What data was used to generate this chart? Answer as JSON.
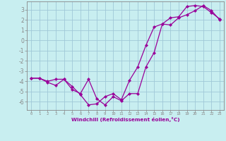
{
  "xlabel": "Windchill (Refroidissement éolien,°C)",
  "bg_color": "#c8eef0",
  "grid_color": "#a0c8d8",
  "line_color": "#990099",
  "spine_color": "#888888",
  "xlim": [
    -0.5,
    23.5
  ],
  "ylim": [
    -6.8,
    3.8
  ],
  "xticks": [
    0,
    1,
    2,
    3,
    4,
    5,
    6,
    7,
    8,
    9,
    10,
    11,
    12,
    13,
    14,
    15,
    16,
    17,
    18,
    19,
    20,
    21,
    22,
    23
  ],
  "yticks": [
    -6,
    -5,
    -4,
    -3,
    -2,
    -1,
    0,
    1,
    2,
    3
  ],
  "line1_x": [
    0,
    1,
    2,
    3,
    4,
    5,
    6,
    7,
    8,
    9,
    10,
    11,
    12,
    13,
    14,
    15,
    16,
    17,
    18,
    19,
    20,
    21,
    22,
    23
  ],
  "line1_y": [
    -3.7,
    -3.7,
    -4.0,
    -3.8,
    -3.8,
    -4.5,
    -5.3,
    -6.3,
    -6.2,
    -5.5,
    -5.2,
    -5.8,
    -3.9,
    -2.6,
    -0.5,
    1.3,
    1.6,
    2.2,
    2.3,
    3.3,
    3.4,
    3.3,
    2.7,
    2.1
  ],
  "line2_x": [
    0,
    1,
    2,
    3,
    4,
    5,
    6,
    7,
    8,
    9,
    10,
    11,
    12,
    13,
    14,
    15,
    16,
    17,
    18,
    19,
    20,
    21,
    22,
    23
  ],
  "line2_y": [
    -3.7,
    -3.7,
    -4.1,
    -4.4,
    -3.8,
    -4.8,
    -5.2,
    -3.8,
    -5.7,
    -6.3,
    -5.5,
    -5.9,
    -5.2,
    -5.2,
    -2.6,
    -1.2,
    1.6,
    1.5,
    2.2,
    2.5,
    2.9,
    3.4,
    2.9,
    2.0
  ],
  "marker": "D",
  "markersize": 2.2,
  "linewidth": 0.9
}
